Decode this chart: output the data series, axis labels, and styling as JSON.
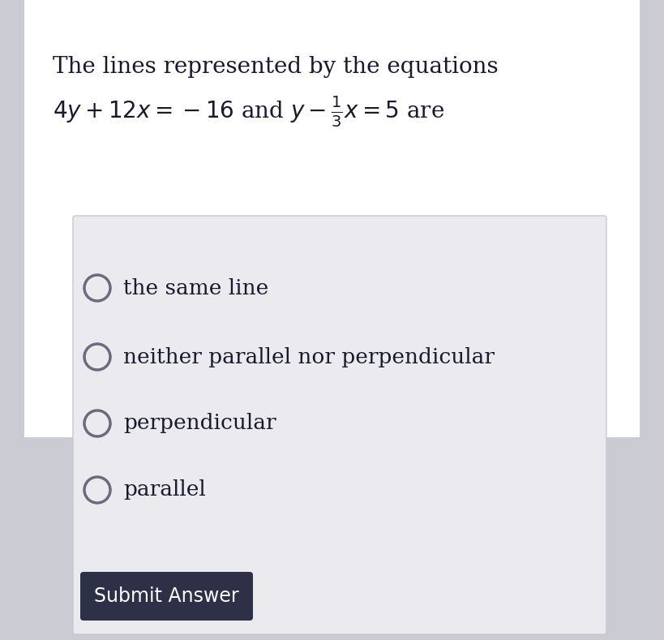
{
  "bg_color": "#cbcbd3",
  "white_bg": "#ffffff",
  "box_bg": "#ebebef",
  "box_border": "#c8c8ce",
  "title_line1": "The lines represented by the equations",
  "title_line2": "$4y + 12x = -16$ and $y - \\frac{1}{3}x = 5$ are",
  "options": [
    "the same line",
    "neither parallel nor perpendicular",
    "perpendicular",
    "parallel"
  ],
  "button_text": "Submit Answer",
  "button_bg": "#2d3047",
  "button_text_color": "#ffffff",
  "text_color": "#1a1a2e",
  "radio_color": "#6b6b80",
  "title_fontsize": 20,
  "option_fontsize": 19,
  "button_fontsize": 17,
  "fig_width": 8.19,
  "fig_height": 7.89,
  "dpi": 100
}
